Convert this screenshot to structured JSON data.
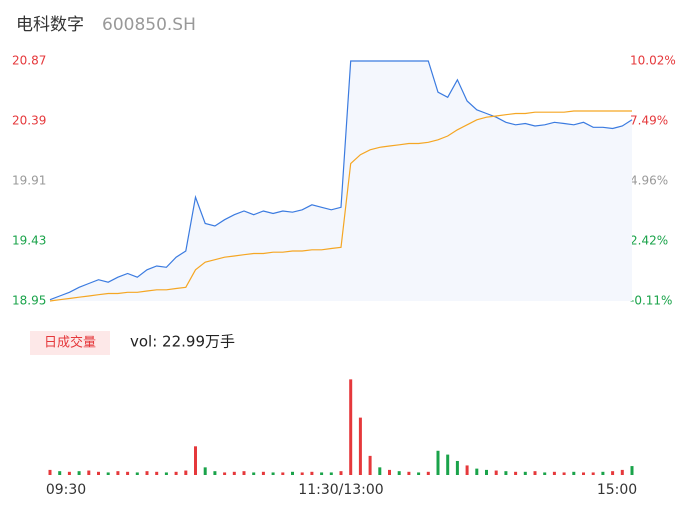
{
  "chart_data": [
    {
      "type": "line",
      "title": "电科数字",
      "subtitle": "600850.SH",
      "x": [
        0,
        4,
        8,
        12,
        16,
        20,
        24,
        28,
        32,
        36,
        40,
        44,
        48,
        52,
        56,
        60,
        64,
        68,
        72,
        76,
        80,
        84,
        88,
        92,
        96,
        100,
        104,
        108,
        112,
        116,
        120,
        124,
        128,
        132,
        136,
        140,
        144,
        148,
        152,
        156,
        160,
        164,
        168,
        172,
        176,
        180,
        184,
        188,
        192,
        196,
        200,
        204,
        208,
        212,
        216,
        220,
        224,
        228,
        232,
        236,
        240
      ],
      "xlim": [
        0,
        240
      ],
      "series": [
        {
          "name": "price",
          "color": "#3b7be0",
          "values": [
            18.96,
            18.99,
            19.02,
            19.06,
            19.09,
            19.12,
            19.1,
            19.14,
            19.17,
            19.14,
            19.2,
            19.23,
            19.22,
            19.3,
            19.35,
            19.78,
            19.57,
            19.55,
            19.6,
            19.64,
            19.67,
            19.64,
            19.67,
            19.65,
            19.67,
            19.66,
            19.68,
            19.72,
            19.7,
            19.68,
            19.7,
            20.87,
            20.87,
            20.87,
            20.87,
            20.87,
            20.87,
            20.87,
            20.87,
            20.87,
            20.62,
            20.58,
            20.72,
            20.55,
            20.48,
            20.45,
            20.42,
            20.38,
            20.36,
            20.37,
            20.35,
            20.36,
            20.38,
            20.37,
            20.36,
            20.38,
            20.34,
            20.34,
            20.33,
            20.35,
            20.4
          ]
        },
        {
          "name": "average",
          "color": "#f5a623",
          "values": [
            18.95,
            18.96,
            18.97,
            18.98,
            18.99,
            19.0,
            19.01,
            19.01,
            19.02,
            19.02,
            19.03,
            19.04,
            19.04,
            19.05,
            19.06,
            19.2,
            19.26,
            19.28,
            19.3,
            19.31,
            19.32,
            19.33,
            19.33,
            19.34,
            19.34,
            19.35,
            19.35,
            19.36,
            19.36,
            19.37,
            19.38,
            20.05,
            20.12,
            20.16,
            20.18,
            20.19,
            20.2,
            20.21,
            20.21,
            20.22,
            20.24,
            20.27,
            20.32,
            20.36,
            20.4,
            20.42,
            20.43,
            20.44,
            20.45,
            20.45,
            20.46,
            20.46,
            20.46,
            20.46,
            20.47,
            20.47,
            20.47,
            20.47,
            20.47,
            20.47,
            20.47
          ]
        }
      ],
      "ylim": [
        18.95,
        20.87
      ],
      "yticks": [
        20.87,
        20.39,
        19.91,
        19.43,
        18.95
      ],
      "ytick_colors": [
        "#e5383b",
        "#e5383b",
        "#999999",
        "#1aa34a",
        "#1aa34a"
      ],
      "y2lim": [
        -0.11,
        10.02
      ],
      "y2ticks": [
        {
          "value": 10.02,
          "label": "10.02%"
        },
        {
          "value": 7.49,
          "label": "7.49%"
        },
        {
          "value": 4.96,
          "label": "4.96%"
        },
        {
          "value": 2.42,
          "label": "2.42%"
        },
        {
          "value": -0.11,
          "label": "-0.11%"
        }
      ],
      "area_color": "#f4f7fd"
    },
    {
      "type": "bar",
      "title": "日成交量",
      "subtitle": "vol: 22.99万手",
      "x": [
        0,
        4,
        8,
        12,
        16,
        20,
        24,
        28,
        32,
        36,
        40,
        44,
        48,
        52,
        56,
        60,
        64,
        68,
        72,
        76,
        80,
        84,
        88,
        92,
        96,
        100,
        104,
        108,
        112,
        116,
        120,
        124,
        128,
        132,
        136,
        140,
        144,
        148,
        152,
        156,
        160,
        164,
        168,
        172,
        176,
        180,
        184,
        188,
        192,
        196,
        200,
        204,
        208,
        212,
        216,
        220,
        224,
        228,
        232,
        236,
        240
      ],
      "xlim": [
        0,
        240
      ],
      "xticks": [
        {
          "value": 0,
          "label": "09:30"
        },
        {
          "value": 120,
          "label": "11:30/13:00"
        },
        {
          "value": 240,
          "label": "15:00"
        }
      ],
      "values": [
        0.08,
        0.06,
        0.05,
        0.06,
        0.07,
        0.05,
        0.04,
        0.06,
        0.05,
        0.04,
        0.06,
        0.05,
        0.04,
        0.05,
        0.07,
        0.45,
        0.12,
        0.06,
        0.04,
        0.05,
        0.06,
        0.04,
        0.05,
        0.04,
        0.04,
        0.05,
        0.04,
        0.05,
        0.04,
        0.04,
        0.06,
        1.5,
        0.9,
        0.3,
        0.12,
        0.08,
        0.06,
        0.05,
        0.04,
        0.05,
        0.38,
        0.32,
        0.22,
        0.15,
        0.1,
        0.08,
        0.07,
        0.06,
        0.05,
        0.05,
        0.06,
        0.04,
        0.05,
        0.04,
        0.05,
        0.04,
        0.04,
        0.05,
        0.06,
        0.08,
        0.14
      ],
      "colors": [
        "#e5383b",
        "#1aa34a",
        "#e5383b",
        "#1aa34a",
        "#e5383b",
        "#e5383b",
        "#1aa34a",
        "#e5383b",
        "#e5383b",
        "#1aa34a",
        "#e5383b",
        "#e5383b",
        "#1aa34a",
        "#e5383b",
        "#e5383b",
        "#e5383b",
        "#1aa34a",
        "#1aa34a",
        "#e5383b",
        "#e5383b",
        "#e5383b",
        "#1aa34a",
        "#e5383b",
        "#1aa34a",
        "#e5383b",
        "#1aa34a",
        "#e5383b",
        "#e5383b",
        "#1aa34a",
        "#1aa34a",
        "#e5383b",
        "#e5383b",
        "#e5383b",
        "#e5383b",
        "#1aa34a",
        "#e5383b",
        "#1aa34a",
        "#e5383b",
        "#1aa34a",
        "#e5383b",
        "#1aa34a",
        "#1aa34a",
        "#1aa34a",
        "#e5383b",
        "#1aa34a",
        "#1aa34a",
        "#e5383b",
        "#1aa34a",
        "#e5383b",
        "#1aa34a",
        "#e5383b",
        "#1aa34a",
        "#e5383b",
        "#e5383b",
        "#1aa34a",
        "#e5383b",
        "#e5383b",
        "#1aa34a",
        "#e5383b",
        "#e5383b",
        "#1aa34a"
      ],
      "ylim": [
        0,
        1.6
      ],
      "label_bg": "#fde8e8",
      "label_color": "#e5383b"
    }
  ]
}
